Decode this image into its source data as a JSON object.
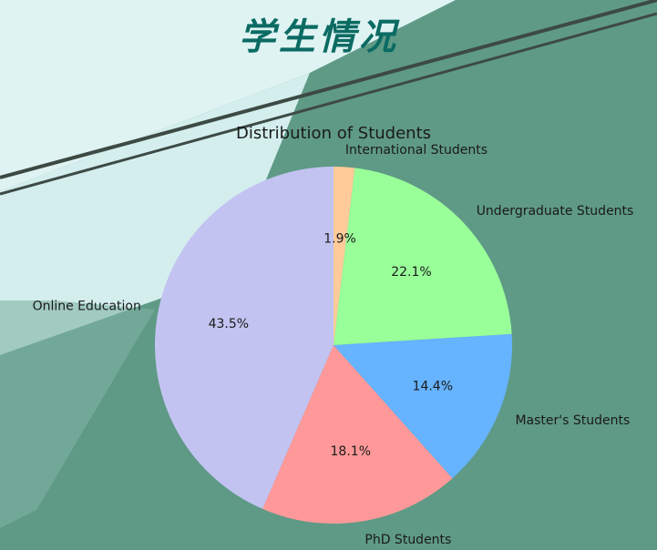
{
  "header": {
    "title": "学生情况"
  },
  "colors": {
    "background_light": "#dff3f3",
    "background_dark": "#5f9a86"
  },
  "chart_data": {
    "type": "pie",
    "title": "Distribution of Students",
    "start_angle_deg": 90,
    "direction": "counterclockwise",
    "slices": [
      {
        "label": "Online Education",
        "value": 43.5,
        "pct_label": "43.5%",
        "color": "#c3c3f2"
      },
      {
        "label": "PhD Students",
        "value": 18.1,
        "pct_label": "18.1%",
        "color": "#ff9999"
      },
      {
        "label": "Master's Students",
        "value": 14.4,
        "pct_label": "14.4%",
        "color": "#66b3ff"
      },
      {
        "label": "Undergraduate Students",
        "value": 22.1,
        "pct_label": "22.1%",
        "color": "#99ff99"
      },
      {
        "label": "International Students",
        "value": 1.9,
        "pct_label": "1.9%",
        "color": "#ffcc99"
      }
    ]
  }
}
